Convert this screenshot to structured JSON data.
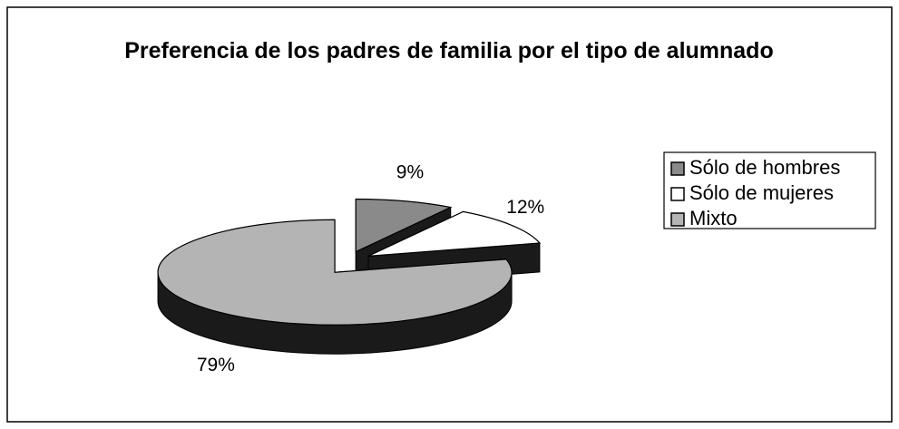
{
  "chart_data": {
    "type": "pie",
    "title": "Preferencia de los padres de familia por el tipo de alumnado",
    "categories": [
      "Sólo de hombres",
      "Sólo de mujeres",
      "Mixto"
    ],
    "values": [
      9,
      12,
      79
    ],
    "value_labels": [
      "9%",
      "12%",
      "79%"
    ],
    "colors": [
      "#8a8a8a",
      "#ffffff",
      "#b4b4b4"
    ],
    "legend": "right"
  }
}
